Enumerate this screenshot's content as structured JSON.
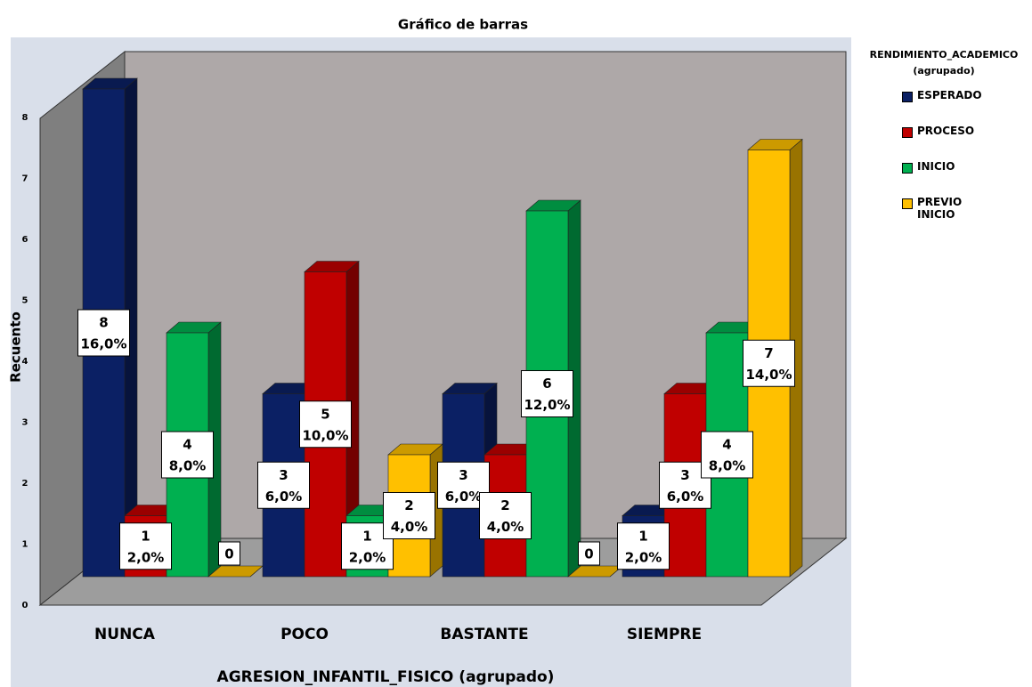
{
  "chart_data": {
    "type": "bar3d",
    "title": "Gráfico de barras",
    "x_label": "AGRESION_INFANTIL_FISICO (agrupado)",
    "y_label": "Recuento",
    "legend_title": [
      "RENDIMIENTO_ACADEMICO",
      "(agrupado)"
    ],
    "categories": [
      "NUNCA",
      "POCO",
      "BASTANTE",
      "SIEMPRE"
    ],
    "series": [
      {
        "name": "ESPERADO",
        "color": "#0b2064",
        "values": [
          8,
          3,
          3,
          1
        ],
        "percent_labels": [
          "16,0%",
          "6,0%",
          "6,0%",
          "2,0%"
        ]
      },
      {
        "name": "PROCESO",
        "color": "#c00000",
        "values": [
          1,
          5,
          2,
          3
        ],
        "percent_labels": [
          "2,0%",
          "10,0%",
          "4,0%",
          "6,0%"
        ]
      },
      {
        "name": "INICIO",
        "color": "#00b050",
        "values": [
          4,
          1,
          6,
          4
        ],
        "percent_labels": [
          "8,0%",
          "2,0%",
          "12,0%",
          "8,0%"
        ]
      },
      {
        "name": "PREVIO INICIO",
        "color": "#ffc000",
        "values": [
          0,
          2,
          0,
          7
        ],
        "percent_labels": [
          null,
          "4,0%",
          null,
          "14,0%"
        ]
      }
    ],
    "ylim": [
      0,
      8
    ],
    "yticks": [
      0,
      1,
      2,
      3,
      4,
      5,
      6,
      7,
      8
    ],
    "legend": "right"
  }
}
